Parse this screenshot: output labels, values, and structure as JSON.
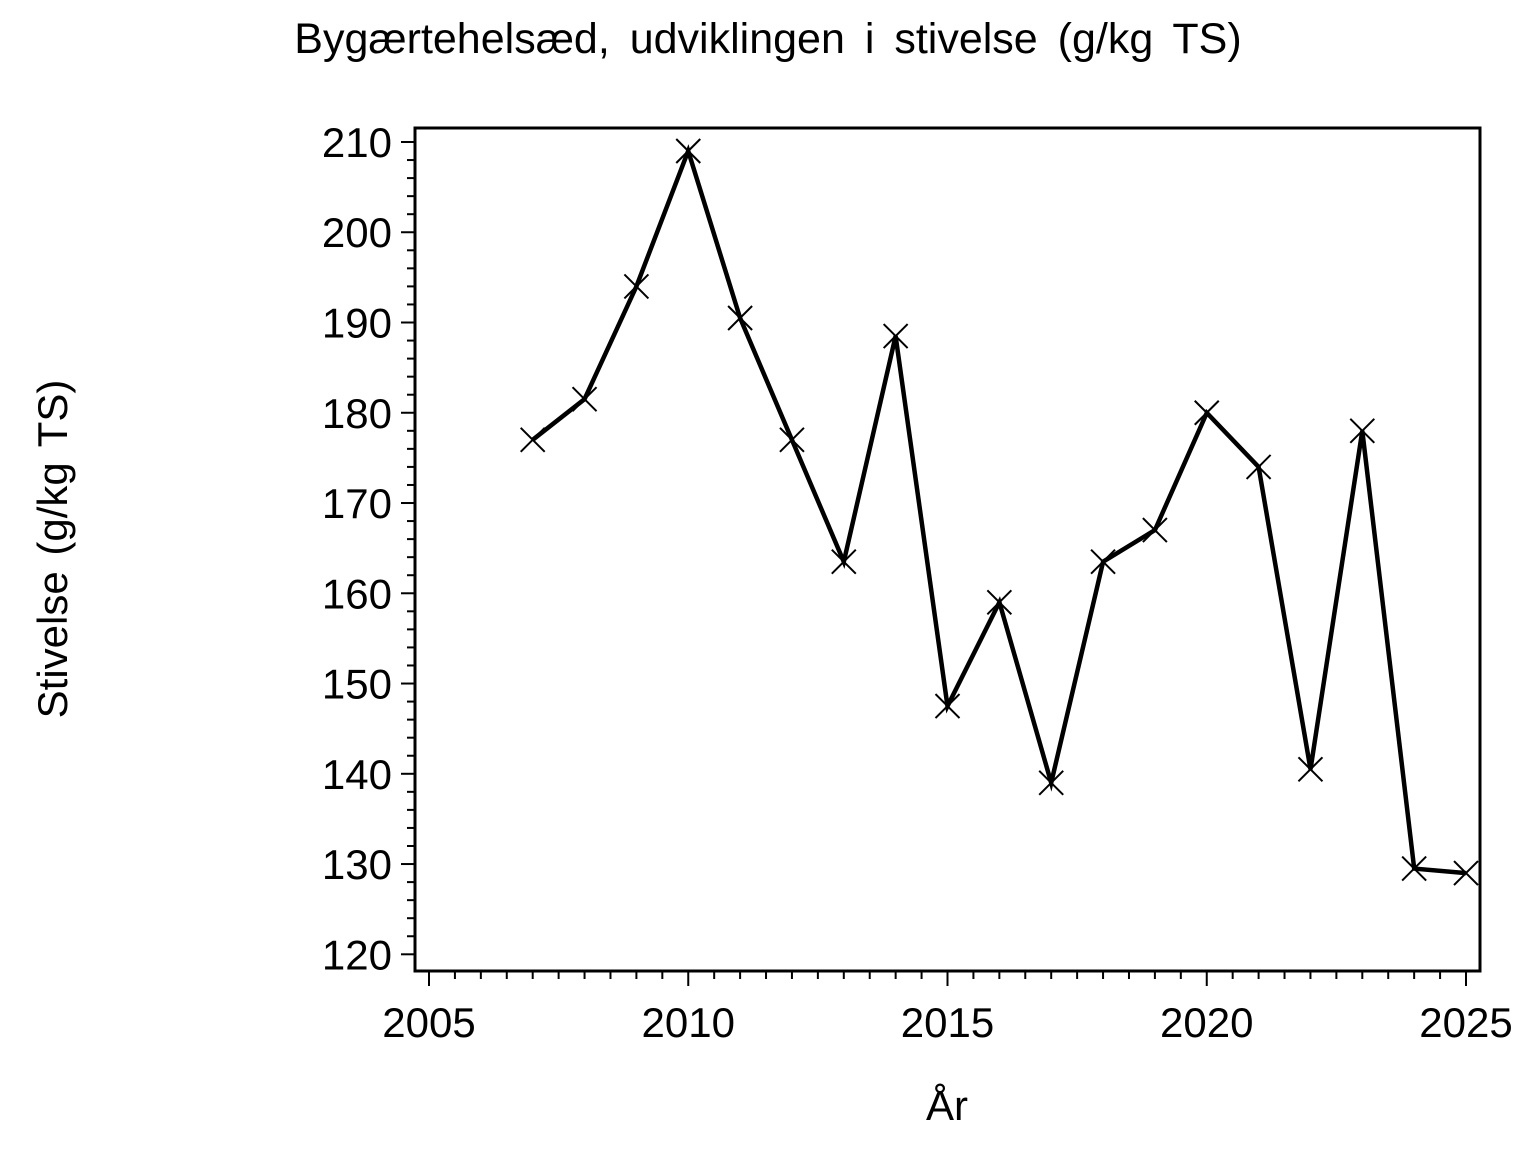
{
  "page": {
    "background": "#ffffff",
    "foreground": "#000000"
  },
  "chart_data": {
    "type": "line",
    "title": "Bygærtehelsæd, udviklingen i stivelse (g/kg TS)",
    "xlabel": "År",
    "ylabel": "Stivelse (g/kg TS)",
    "series_name": "Stivelse",
    "x": [
      2007,
      2008,
      2009,
      2010,
      2011,
      2012,
      2013,
      2014,
      2015,
      2016,
      2017,
      2018,
      2019,
      2020,
      2021,
      2022,
      2023,
      2024,
      2025
    ],
    "values": [
      177,
      181.5,
      194,
      209,
      190.5,
      177,
      163.5,
      188.5,
      147.5,
      159,
      139,
      163.5,
      167,
      180,
      174,
      140.5,
      178,
      129.5,
      129
    ],
    "marker": "x-cross",
    "line_color": "#000000",
    "marker_color": "#000000",
    "xlim": [
      2004.73,
      2025.27
    ],
    "ylim": [
      118.15,
      211.55
    ],
    "x_major_ticks": [
      2005,
      2010,
      2015,
      2020,
      2025
    ],
    "x_tick_labels": [
      "2005",
      "2010",
      "2015",
      "2020",
      "2025"
    ],
    "x_minor_tick_step": 0.5,
    "y_major_ticks": [
      120,
      130,
      140,
      150,
      160,
      170,
      180,
      190,
      200,
      210
    ],
    "y_tick_labels": [
      "120",
      "130",
      "140",
      "150",
      "160",
      "170",
      "180",
      "190",
      "200",
      "210"
    ],
    "y_minor_tick_step": 2,
    "grid": false,
    "legend": "none"
  }
}
